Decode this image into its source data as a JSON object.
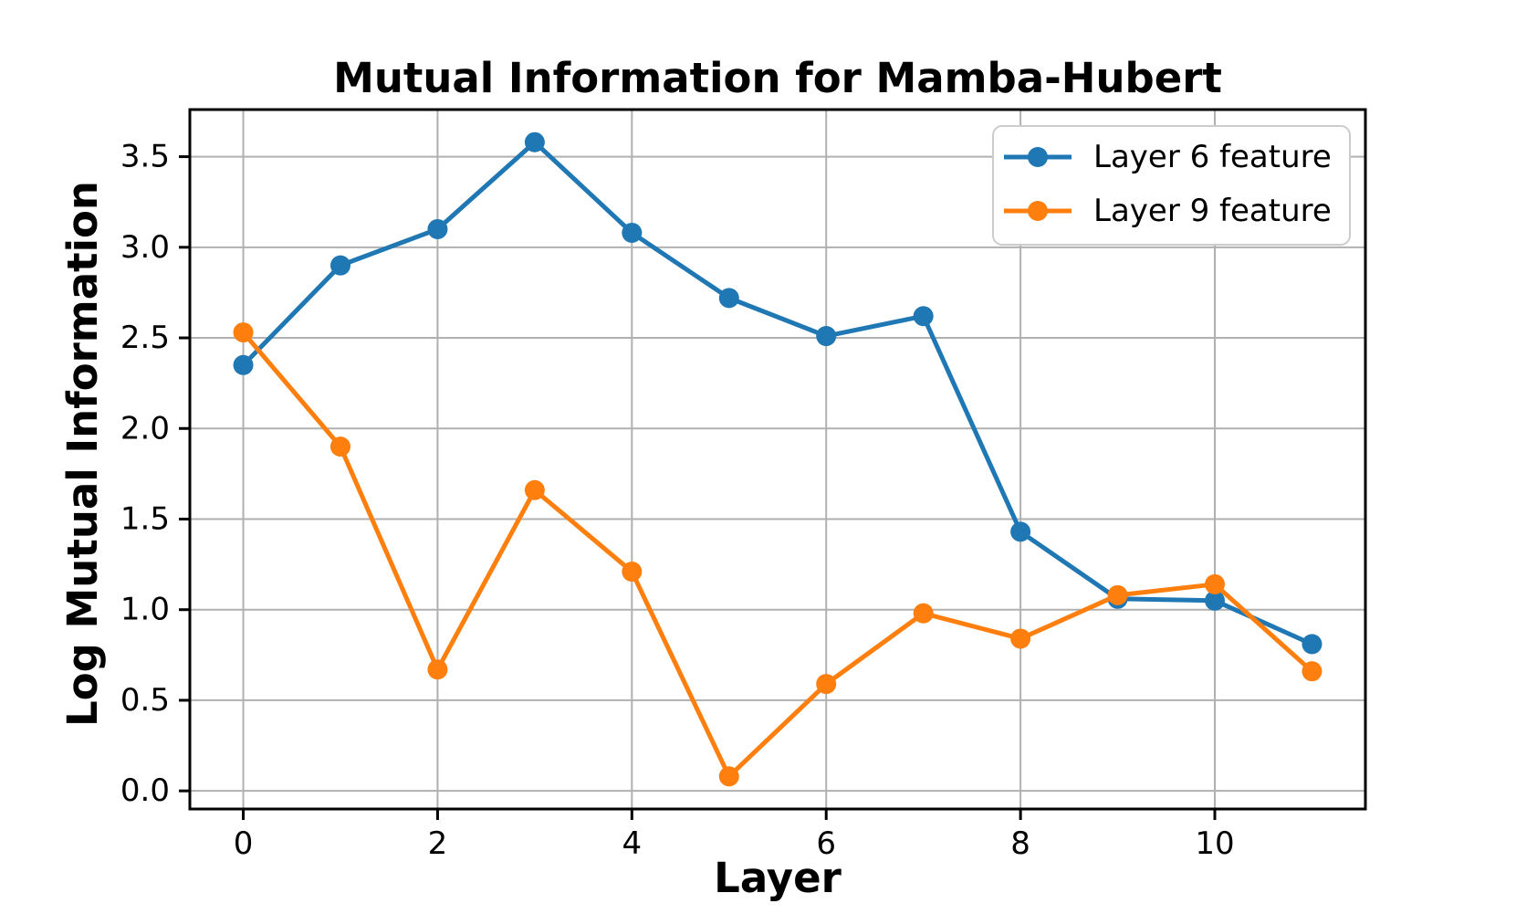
{
  "figure": {
    "title": "Mutual Information for Mamba-Hubert",
    "xlabel": "Layer",
    "ylabel": "Log Mutual Information"
  },
  "legend": {
    "position": "upper right",
    "items": [
      {
        "label": "Layer 6 feature",
        "color": "#1f77b4"
      },
      {
        "label": "Layer 9 feature",
        "color": "#ff7f0e"
      }
    ]
  },
  "chart_data": {
    "type": "line",
    "title": "Mutual Information for Mamba-Hubert",
    "xlabel": "Layer",
    "ylabel": "Log Mutual Information",
    "x": [
      0,
      1,
      2,
      3,
      4,
      5,
      6,
      7,
      8,
      9,
      10,
      11
    ],
    "series": [
      {
        "name": "Layer 6 feature",
        "color": "#1f77b4",
        "values": [
          2.35,
          2.9,
          3.1,
          3.58,
          3.08,
          2.72,
          2.51,
          2.62,
          1.43,
          1.06,
          1.05,
          0.81
        ]
      },
      {
        "name": "Layer 9 feature",
        "color": "#ff7f0e",
        "values": [
          2.53,
          1.9,
          0.67,
          1.66,
          1.21,
          0.08,
          0.59,
          0.98,
          0.84,
          1.08,
          1.14,
          0.66
        ]
      }
    ],
    "xlim": [
      -0.55,
      11.55
    ],
    "ylim": [
      -0.1,
      3.76
    ],
    "xticks": [
      0,
      2,
      4,
      6,
      8,
      10
    ],
    "xtick_labels": [
      "0",
      "2",
      "4",
      "6",
      "8",
      "10"
    ],
    "yticks": [
      0.0,
      0.5,
      1.0,
      1.5,
      2.0,
      2.5,
      3.0,
      3.5
    ],
    "ytick_labels": [
      "0.0",
      "0.5",
      "1.0",
      "1.5",
      "2.0",
      "2.5",
      "3.0",
      "3.5"
    ],
    "grid": true,
    "grid_color": "#b0b0b0",
    "spine_color": "#000000",
    "background": "#ffffff",
    "legend_position": "upper right"
  }
}
